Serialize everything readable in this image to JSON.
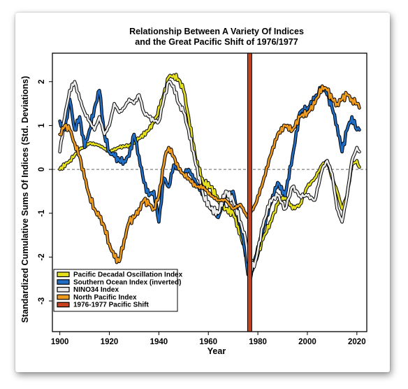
{
  "chart_data": {
    "type": "line",
    "title": "Relationship Between A Variety Of Indices",
    "subtitle": "and the Great Pacific Shift of 1976/1977",
    "xlabel": "Year",
    "ylabel": "Standardized Cumulative Sums Of Indices (Std. Deviations)",
    "xlim": [
      1897,
      2024
    ],
    "ylim": [
      -3.7,
      2.65
    ],
    "xticks": [
      1900,
      1920,
      1940,
      1960,
      1980,
      2000,
      2020
    ],
    "yticks": [
      -3,
      -2,
      -1,
      0,
      1,
      2
    ],
    "zero_line": "dashed",
    "legend_position": "bottom-left",
    "series": [
      {
        "name": "Pacific Decadal Oscillation Index",
        "color": "#e6e01a",
        "x": [
          1900,
          1904,
          1908,
          1912,
          1916,
          1920,
          1924,
          1928,
          1932,
          1936,
          1939,
          1942,
          1944,
          1946,
          1948,
          1950,
          1952,
          1955,
          1958,
          1961,
          1964,
          1967,
          1970,
          1972,
          1974,
          1976,
          1977,
          1979,
          1982,
          1985,
          1988,
          1991,
          1994,
          1997,
          2000,
          2003,
          2006,
          2008,
          2010,
          2012,
          2014,
          2016,
          2018,
          2020,
          2021
        ],
        "y": [
          0.0,
          0.2,
          0.45,
          0.6,
          0.55,
          0.4,
          0.5,
          0.55,
          0.7,
          0.9,
          1.2,
          1.7,
          2.1,
          2.15,
          2.05,
          1.8,
          1.2,
          0.2,
          -0.3,
          -0.4,
          -0.7,
          -0.9,
          -1.0,
          -1.3,
          -1.7,
          -2.1,
          -2.2,
          -2.1,
          -1.6,
          -1.2,
          -0.8,
          -0.6,
          -0.9,
          -0.8,
          -0.4,
          -0.2,
          0.1,
          0.2,
          -0.2,
          -0.5,
          -0.9,
          -0.6,
          0.1,
          0.2,
          0.05
        ]
      },
      {
        "name": "Southern Ocean Index (inverted)",
        "color": "#1f6fc6",
        "x": [
          1900,
          1902,
          1904,
          1906,
          1908,
          1910,
          1912,
          1914,
          1916,
          1918,
          1920,
          1922,
          1924,
          1926,
          1928,
          1930,
          1932,
          1934,
          1936,
          1938,
          1940,
          1942,
          1944,
          1946,
          1948,
          1950,
          1952,
          1955,
          1958,
          1961,
          1964,
          1967,
          1970,
          1973,
          1975,
          1976,
          1977,
          1979,
          1982,
          1985,
          1988,
          1991,
          1994,
          1997,
          2000,
          2003,
          2006,
          2008,
          2010,
          2012,
          2014,
          2016,
          2018,
          2020,
          2021
        ],
        "y": [
          1.1,
          0.9,
          1.6,
          0.9,
          1.2,
          0.5,
          0.9,
          1.4,
          1.8,
          0.8,
          0.4,
          0.3,
          0.2,
          0.2,
          0.3,
          0.8,
          0.3,
          -0.3,
          -0.6,
          -0.5,
          -1.2,
          -0.2,
          -0.4,
          0.1,
          0.0,
          -0.1,
          0.0,
          -0.3,
          -0.6,
          -0.9,
          -1.1,
          -0.6,
          -0.5,
          -1.3,
          -1.9,
          -2.4,
          -2.5,
          -2.0,
          -1.4,
          -0.8,
          -0.3,
          -0.6,
          0.3,
          1.3,
          1.4,
          1.6,
          1.9,
          1.7,
          1.4,
          1.0,
          0.4,
          0.9,
          1.2,
          0.9,
          0.9
        ]
      },
      {
        "name": "NINO34 Index",
        "color": "#ececec",
        "x": [
          1900,
          1902,
          1904,
          1906,
          1908,
          1910,
          1912,
          1914,
          1916,
          1918,
          1920,
          1922,
          1924,
          1926,
          1928,
          1930,
          1932,
          1934,
          1936,
          1938,
          1940,
          1942,
          1944,
          1946,
          1948,
          1950,
          1952,
          1955,
          1958,
          1961,
          1964,
          1967,
          1970,
          1973,
          1975,
          1976,
          1977,
          1979,
          1982,
          1985,
          1988,
          1991,
          1994,
          1997,
          2000,
          2003,
          2006,
          2008,
          2010,
          2012,
          2014,
          2016,
          2018,
          2020,
          2021
        ],
        "y": [
          0.4,
          1.2,
          1.8,
          2.0,
          1.6,
          1.3,
          1.1,
          0.9,
          1.2,
          0.8,
          1.0,
          1.5,
          1.3,
          1.4,
          1.6,
          1.5,
          1.7,
          1.3,
          1.2,
          1.1,
          1.1,
          1.6,
          2.0,
          1.9,
          1.5,
          1.3,
          0.9,
          0.1,
          -0.6,
          -0.9,
          -1.0,
          -0.5,
          -0.7,
          -1.2,
          -1.6,
          -2.1,
          -2.3,
          -2.1,
          -1.3,
          -0.7,
          -0.6,
          -0.9,
          -0.4,
          -0.6,
          -0.6,
          -0.7,
          0.0,
          0.2,
          -0.1,
          -0.9,
          -1.2,
          -0.6,
          0.2,
          0.5,
          0.4
        ]
      },
      {
        "name": "North Pacific Index",
        "color": "#ee9a1c",
        "x": [
          1900,
          1902,
          1904,
          1906,
          1908,
          1910,
          1912,
          1914,
          1916,
          1918,
          1920,
          1922,
          1924,
          1926,
          1928,
          1930,
          1932,
          1934,
          1936,
          1938,
          1940,
          1942,
          1943,
          1944,
          1946,
          1948,
          1950,
          1952,
          1955,
          1958,
          1961,
          1964,
          1967,
          1970,
          1973,
          1975,
          1976,
          1977,
          1979,
          1982,
          1985,
          1988,
          1991,
          1994,
          1997,
          2000,
          2003,
          2006,
          2008,
          2010,
          2012,
          2014,
          2016,
          2018,
          2020,
          2021
        ],
        "y": [
          0.8,
          1.0,
          0.9,
          0.6,
          0.3,
          -0.2,
          -0.6,
          -0.9,
          -1.1,
          -1.3,
          -1.7,
          -2.0,
          -2.1,
          -1.6,
          -1.2,
          -1.1,
          -0.9,
          -0.7,
          -0.8,
          -0.9,
          -0.6,
          0.1,
          0.4,
          0.5,
          0.3,
          0.0,
          -0.1,
          -0.2,
          -0.4,
          -0.4,
          -0.6,
          -0.7,
          -0.7,
          -0.9,
          -0.8,
          -1.0,
          -1.1,
          -1.0,
          -0.8,
          -0.3,
          0.3,
          0.8,
          1.0,
          0.9,
          1.2,
          1.3,
          1.5,
          1.9,
          1.8,
          1.6,
          1.5,
          1.6,
          1.7,
          1.6,
          1.5,
          1.4
        ]
      }
    ],
    "vertical_line": {
      "name": "1976-1977 Pacific Shift",
      "x": 1976.7,
      "color": "#c8401c"
    },
    "legend": [
      {
        "label": "Pacific Decadal Oscillation Index",
        "color": "#e6e01a"
      },
      {
        "label": "Southern Ocean Index (inverted)",
        "color": "#1f6fc6"
      },
      {
        "label": "NINO34 Index",
        "color": "#ececec"
      },
      {
        "label": "North Pacific Index",
        "color": "#ee9a1c"
      },
      {
        "label": "1976-1977 Pacific Shift",
        "color": "#c8401c"
      }
    ]
  }
}
